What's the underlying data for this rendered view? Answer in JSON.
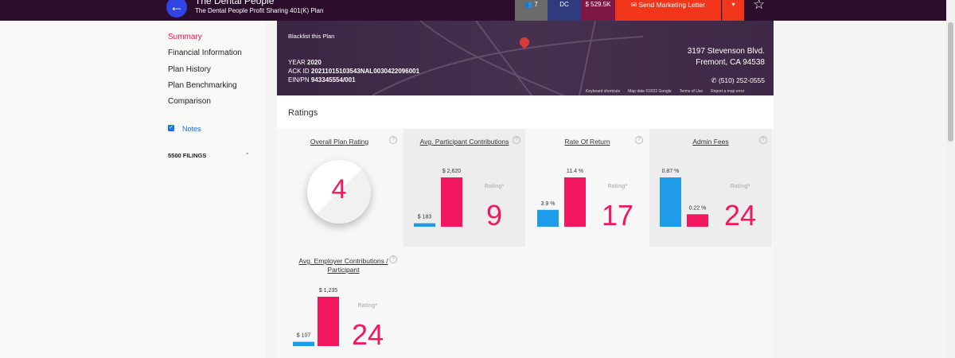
{
  "header": {
    "title": "The Dental People",
    "subtitle": "The Dental People Profit Sharing 401(K) Plan"
  },
  "toolbar": {
    "contacts": "7",
    "plan_type": "DC",
    "assets": "$ 529.5K",
    "send": "Send Marketing Letter"
  },
  "sidebar": {
    "items": [
      "Summary",
      "Financial Information",
      "Plan History",
      "Plan Benchmarking",
      "Comparison"
    ],
    "notes": "Notes",
    "filings": "5500 FILINGS"
  },
  "plan": {
    "blacklist": "Blacklist this Plan",
    "year_label": "YEAR",
    "year": "2020",
    "ack_label": "ACK ID",
    "ack": "20211015103543NAL0030422096001",
    "ein_label": "EIN/PN",
    "ein": "943345554/001",
    "address_line1": "3197 Stevenson Blvd.",
    "address_line2": "Fremont, CA 94538",
    "phone": "(510) 252-0555",
    "map_footer": [
      "Keyboard shortcuts",
      "Map data ©2022 Google",
      "Terms of Use",
      "Report a map error"
    ]
  },
  "ratings": {
    "title": "Ratings",
    "colors": [
      "#1e9be9",
      "#f2175f"
    ],
    "cards": [
      {
        "title": "Overall Plan Rating",
        "rating": 4
      },
      {
        "title": "Avg. Participant Contributions",
        "bars": [
          {
            "value": 183,
            "label": "$ 183"
          },
          {
            "value": 2620,
            "label": "$ 2,620"
          }
        ],
        "rating_label": "Rating*",
        "rating": 9
      },
      {
        "title": "Rate Of Return",
        "bars": [
          {
            "value": 3.9,
            "label": "3.9 %"
          },
          {
            "value": 11.4,
            "label": "11.4 %"
          }
        ],
        "rating_label": "Rating*",
        "rating": 17
      },
      {
        "title": "Admin Fees",
        "bars": [
          {
            "value": 0.87,
            "label": "0.87 %"
          },
          {
            "value": 0.22,
            "label": "0.22 %"
          }
        ],
        "rating_label": "Rating*",
        "rating": 24
      },
      {
        "title": "Avg. Employer Contributions / Participant",
        "bars": [
          {
            "value": 107,
            "label": "$ 107"
          },
          {
            "value": 1235,
            "label": "$ 1,235"
          }
        ],
        "rating_label": "Rating*",
        "rating": 24
      }
    ]
  }
}
